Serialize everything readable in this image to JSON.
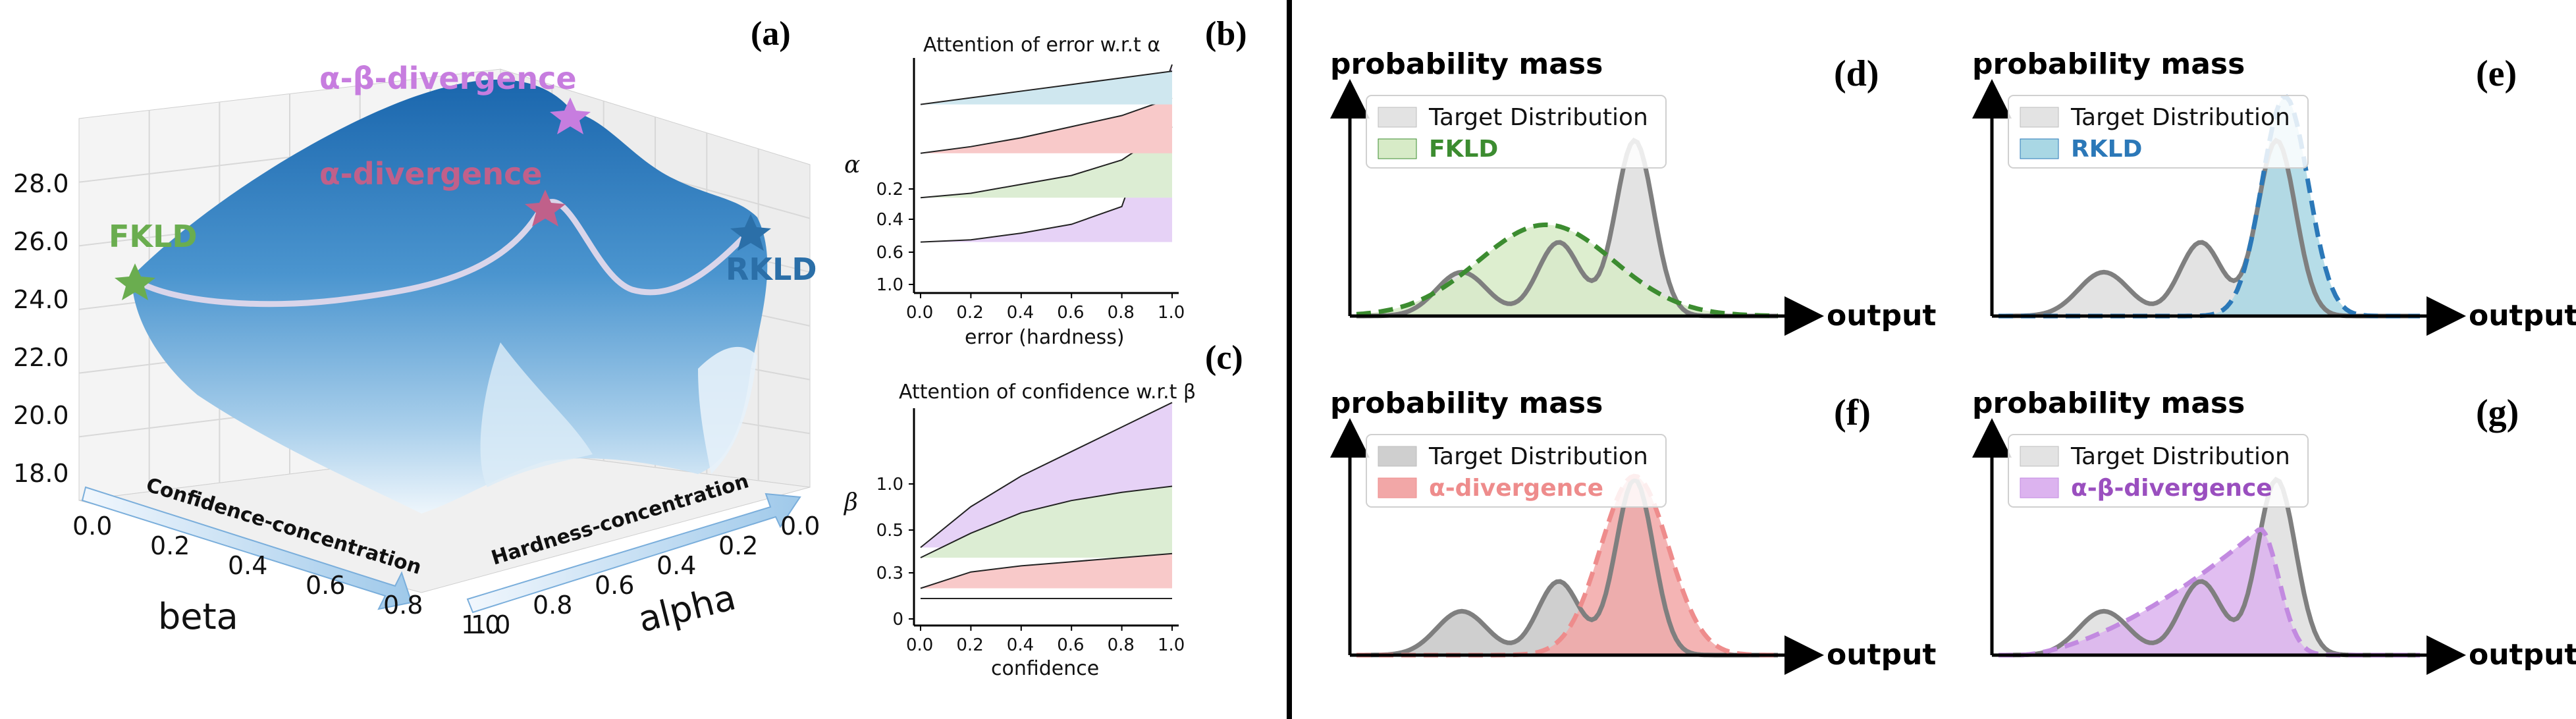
{
  "panel_labels": {
    "a": "(a)",
    "b": "(b)",
    "c": "(c)",
    "d": "(d)",
    "e": "(e)",
    "f": "(f)",
    "g": "(g)"
  },
  "colors": {
    "fkld": "#6aad4f",
    "rkld": "#2b6fa8",
    "alpha": "#c0608a",
    "alphabeta": "#c77ddf",
    "surface_top": "#1e6fb4",
    "surface_bottom": "#eaf3fb",
    "target_fill": "#d9d9d9",
    "target_line": "#7f7f7f",
    "fkld_fill": "#d7ebc7",
    "fkld_line": "#3c8c30",
    "rkld_fill": "#a9d7e4",
    "rkld_line": "#2b78b8",
    "alpha_fill": "#f2a7a7",
    "alpha_line": "#ee8c8c",
    "ab_fill": "#dcb3ef",
    "ab_line": "#c28ae0",
    "band_purple": "#e6d2f6",
    "band_green": "#dcedd3",
    "band_red": "#f8c9c9",
    "band_blue": "#cfe7ef"
  },
  "chart_data": [
    {
      "id": "a",
      "type": "surface3d",
      "yaxis_ticks": [
        "28.0",
        "26.0",
        "24.0",
        "22.0",
        "20.0",
        "18.0"
      ],
      "beta_axis": {
        "label": "beta",
        "ticks": [
          "0.0",
          "0.2",
          "0.4",
          "0.6",
          "0.8",
          "1.0"
        ],
        "arrow_label": "Confidence-concentration"
      },
      "alpha_axis": {
        "label": "alpha",
        "ticks": [
          "0.0",
          "0.2",
          "0.4",
          "0.6",
          "0.8",
          "1.0"
        ],
        "arrow_label": "Hardness-concentration"
      },
      "markers": [
        {
          "name": "FKLD",
          "value": 24.5
        },
        {
          "name": "α-divergence",
          "value": 26.8
        },
        {
          "name": "α-β-divergence",
          "value": 28.6
        },
        {
          "name": "RKLD",
          "value": 25.8
        }
      ]
    },
    {
      "id": "b",
      "type": "area",
      "title": "Attention of error w.r.t α",
      "xlabel": "error (hardness)",
      "ylabel": "α",
      "x_ticks": [
        "0.0",
        "0.2",
        "0.4",
        "0.6",
        "0.8",
        "1.0"
      ],
      "y_ticks": [
        "0.2",
        "0.4",
        "0.6",
        "1.0"
      ],
      "series": [
        {
          "name": "0.2",
          "values": [
            0.2,
            0.21,
            0.24,
            0.28,
            0.36,
            1.0
          ]
        },
        {
          "name": "0.4",
          "values": [
            0.4,
            0.42,
            0.46,
            0.5,
            0.57,
            0.72
          ]
        },
        {
          "name": "0.6",
          "values": [
            0.6,
            0.63,
            0.67,
            0.72,
            0.77,
            0.85
          ]
        },
        {
          "name": "1.0",
          "values": [
            0.82,
            0.85,
            0.88,
            0.91,
            0.94,
            0.97
          ]
        }
      ]
    },
    {
      "id": "c",
      "type": "area",
      "title": "Attention of confidence w.r.t β",
      "xlabel": "confidence",
      "ylabel": "β",
      "x_ticks": [
        "0.0",
        "0.2",
        "0.4",
        "0.6",
        "0.8",
        "1.0"
      ],
      "y_ticks": [
        "1.0",
        "0.5",
        "0.3",
        "0"
      ],
      "series": [
        {
          "name": "1.0",
          "values": [
            0.35,
            0.55,
            0.7,
            0.82,
            0.94,
            1.06
          ]
        },
        {
          "name": "0.5",
          "values": [
            0.3,
            0.42,
            0.52,
            0.58,
            0.62,
            0.65
          ]
        },
        {
          "name": "0.3",
          "values": [
            0.15,
            0.23,
            0.26,
            0.28,
            0.3,
            0.32
          ]
        },
        {
          "name": "0",
          "values": [
            0.1,
            0.1,
            0.1,
            0.1,
            0.1,
            0.1
          ]
        }
      ]
    },
    {
      "id": "d",
      "type": "area",
      "ylabel": "probability mass",
      "xlabel": "output",
      "legend": [
        "Target Distribution",
        "FKLD"
      ]
    },
    {
      "id": "e",
      "type": "area",
      "ylabel": "probability mass",
      "xlabel": "output",
      "legend": [
        "Target Distribution",
        "RKLD"
      ]
    },
    {
      "id": "f",
      "type": "area",
      "ylabel": "probability mass",
      "xlabel": "output",
      "legend": [
        "Target Distribution",
        "α-divergence"
      ]
    },
    {
      "id": "g",
      "type": "area",
      "ylabel": "probability mass",
      "xlabel": "output",
      "legend": [
        "Target Distribution",
        "α-β-divergence"
      ]
    }
  ]
}
